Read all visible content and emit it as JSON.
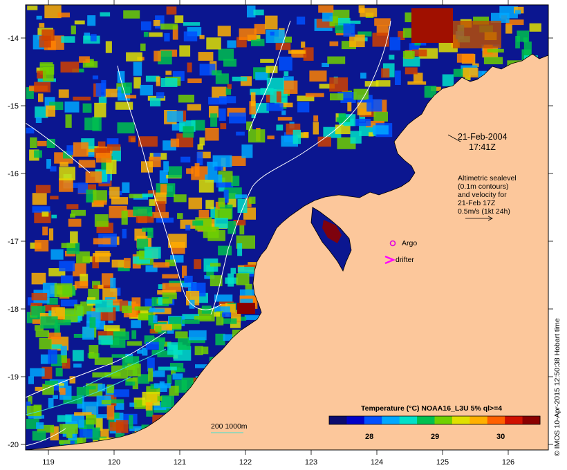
{
  "map": {
    "lon_ticks": [
      "119",
      "120",
      "121",
      "122",
      "123",
      "124",
      "125",
      "126"
    ],
    "lat_ticks": [
      "-14",
      "-15",
      "-16",
      "-17",
      "-18",
      "-19",
      "-20"
    ],
    "date": "21-Feb-2004",
    "time": "17:41Z",
    "altimetry_note": [
      "Altimetric sealevel",
      "(0.1m contours)",
      "and velocity for",
      "21-Feb 17Z",
      "0.5m/s (1kt 24h)"
    ],
    "argo_label": "Argo",
    "drifter_label": "drifter",
    "depth_label": "200  1000m",
    "credit": "© IMOS 10-Apr-2015 12:50:38 Hobart time"
  },
  "colorbar": {
    "title": "Temperature (°C) NOAA16_L3U 5% ql>=4",
    "ticks": [
      "28",
      "29",
      "30"
    ],
    "colors": [
      "#0b0b6e",
      "#0000c8",
      "#0050ff",
      "#00a8ff",
      "#00e0c8",
      "#00c050",
      "#70d000",
      "#e0e000",
      "#ffb000",
      "#ff6000",
      "#d01000",
      "#8b0000"
    ]
  },
  "colors": {
    "land": "#fcc79b",
    "deep_sea": "#0b1690",
    "contour": "#ffffff",
    "argo": "#e000e0",
    "drifter": "#ff00ff",
    "isobath": "#40e0d0"
  }
}
